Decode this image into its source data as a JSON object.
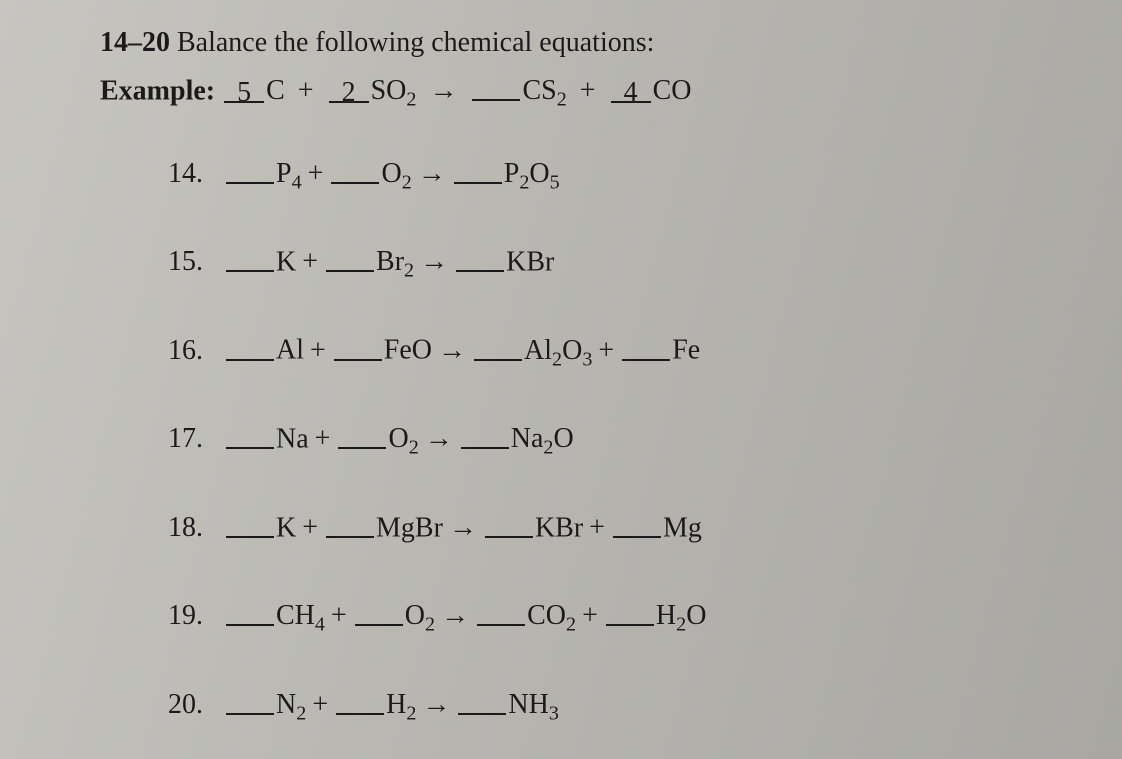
{
  "header": {
    "range": "14–20",
    "instruction": "Balance the following chemical equations:"
  },
  "example": {
    "label": "Example:",
    "c1": "5",
    "t1": "C",
    "c2": "2",
    "t2": "SO",
    "t2sub": "2",
    "arrow": "→",
    "c3": "",
    "t3": "CS",
    "t3sub": "2",
    "c4": "4",
    "t4": "CO"
  },
  "problems": [
    {
      "num": "14.",
      "terms": [
        {
          "blank": "",
          "txt": "P",
          "sub": "4"
        },
        {
          "op": "+"
        },
        {
          "blank": "",
          "txt": "O",
          "sub": "2"
        },
        {
          "op": "→"
        },
        {
          "blank": "",
          "txt": "P",
          "sub": "2",
          "txt2": "O",
          "sub2": "5"
        }
      ]
    },
    {
      "num": "15.",
      "terms": [
        {
          "blank": "",
          "txt": "K"
        },
        {
          "op": "+"
        },
        {
          "blank": "",
          "txt": "Br",
          "sub": "2"
        },
        {
          "op": "→"
        },
        {
          "blank": "",
          "txt": "KBr"
        }
      ]
    },
    {
      "num": "16.",
      "terms": [
        {
          "blank": "",
          "txt": "Al"
        },
        {
          "op": "+"
        },
        {
          "blank": "",
          "txt": "FeO"
        },
        {
          "op": "→"
        },
        {
          "blank": "",
          "txt": "Al",
          "sub": "2",
          "txt2": "O",
          "sub2": "3"
        },
        {
          "op": "+"
        },
        {
          "blank": "",
          "txt": "Fe"
        }
      ]
    },
    {
      "num": "17.",
      "terms": [
        {
          "blank": "",
          "txt": "Na"
        },
        {
          "op": "+"
        },
        {
          "blank": "",
          "txt": "O",
          "sub": "2"
        },
        {
          "op": "→"
        },
        {
          "blank": "",
          "txt": "Na",
          "sub": "2",
          "txt2": "O"
        }
      ]
    },
    {
      "num": "18.",
      "terms": [
        {
          "blank": "",
          "txt": "K"
        },
        {
          "op": "+"
        },
        {
          "blank": "",
          "txt": "MgBr"
        },
        {
          "op": "→"
        },
        {
          "blank": "",
          "txt": "KBr"
        },
        {
          "op": "+"
        },
        {
          "blank": "",
          "txt": "Mg"
        }
      ]
    },
    {
      "num": "19.",
      "terms": [
        {
          "blank": "",
          "txt": "CH",
          "sub": "4"
        },
        {
          "op": "+"
        },
        {
          "blank": "",
          "txt": "O",
          "sub": "2"
        },
        {
          "op": "→"
        },
        {
          "blank": "",
          "txt": "CO",
          "sub": "2"
        },
        {
          "op": "+"
        },
        {
          "blank": "",
          "txt": "H",
          "sub": "2",
          "txt2": "O"
        }
      ]
    },
    {
      "num": "20.",
      "terms": [
        {
          "blank": "",
          "txt": "N",
          "sub": "2"
        },
        {
          "op": "+"
        },
        {
          "blank": "",
          "txt": "H",
          "sub": "2"
        },
        {
          "op": "→"
        },
        {
          "blank": "",
          "txt": "NH",
          "sub": "3"
        }
      ]
    }
  ]
}
